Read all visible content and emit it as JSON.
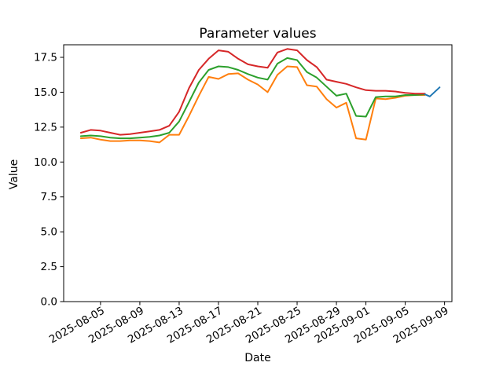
{
  "chart_data": {
    "type": "line",
    "title": "Parameter values",
    "xlabel": "Date",
    "ylabel": "Value",
    "grid": false,
    "legend": "none",
    "background": "#ffffff",
    "axis_color": "#000000",
    "ylim": [
      0,
      18.4
    ],
    "y_ticks": [
      {
        "value": 0.0,
        "label": "0.0"
      },
      {
        "value": 2.5,
        "label": "2.5"
      },
      {
        "value": 5.0,
        "label": "5.0"
      },
      {
        "value": 7.5,
        "label": "7.5"
      },
      {
        "value": 10.0,
        "label": "10.0"
      },
      {
        "value": 12.5,
        "label": "12.5"
      },
      {
        "value": 15.0,
        "label": "15.0"
      },
      {
        "value": 17.5,
        "label": "17.5"
      }
    ],
    "xlim": [
      "2025-08-01T06:00:00",
      "2025-09-09T18:00:00"
    ],
    "x_tick_rotation_deg": 30,
    "x_ticks": [
      {
        "date": "2025-08-05",
        "label": "2025-08-05"
      },
      {
        "date": "2025-08-09",
        "label": "2025-08-09"
      },
      {
        "date": "2025-08-13",
        "label": "2025-08-13"
      },
      {
        "date": "2025-08-17",
        "label": "2025-08-17"
      },
      {
        "date": "2025-08-21",
        "label": "2025-08-21"
      },
      {
        "date": "2025-08-25",
        "label": "2025-08-25"
      },
      {
        "date": "2025-08-29",
        "label": "2025-08-29"
      },
      {
        "date": "2025-09-01",
        "label": "2025-09-01"
      },
      {
        "date": "2025-09-05",
        "label": "2025-09-05"
      },
      {
        "date": "2025-09-09",
        "label": "2025-09-09"
      }
    ],
    "dates": [
      "2025-08-03",
      "2025-08-04",
      "2025-08-05",
      "2025-08-06",
      "2025-08-07",
      "2025-08-08",
      "2025-08-09",
      "2025-08-10",
      "2025-08-11",
      "2025-08-12",
      "2025-08-13",
      "2025-08-14",
      "2025-08-15",
      "2025-08-16",
      "2025-08-17",
      "2025-08-18",
      "2025-08-19",
      "2025-08-20",
      "2025-08-21",
      "2025-08-22",
      "2025-08-23",
      "2025-08-24",
      "2025-08-25",
      "2025-08-26",
      "2025-08-27",
      "2025-08-28",
      "2025-08-29",
      "2025-08-30",
      "2025-08-31",
      "2025-09-01",
      "2025-09-02",
      "2025-09-03",
      "2025-09-04",
      "2025-09-05",
      "2025-09-06",
      "2025-09-07"
    ],
    "series": [
      {
        "name": "orange",
        "color": "#ff7f0e",
        "values": [
          11.7,
          11.75,
          11.6,
          11.5,
          11.5,
          11.55,
          11.55,
          11.5,
          11.4,
          11.95,
          11.95,
          13.3,
          14.75,
          16.1,
          15.95,
          16.3,
          16.35,
          15.9,
          15.55,
          15.0,
          16.25,
          16.85,
          16.8,
          15.5,
          15.4,
          14.5,
          13.9,
          14.25,
          11.7,
          11.6,
          14.55,
          14.5,
          14.6,
          14.75,
          14.8,
          14.8
        ]
      },
      {
        "name": "green",
        "color": "#2ca02c",
        "values": [
          11.85,
          11.9,
          11.85,
          11.75,
          11.7,
          11.7,
          11.75,
          11.8,
          11.9,
          12.1,
          12.9,
          14.3,
          15.7,
          16.6,
          16.85,
          16.8,
          16.6,
          16.3,
          16.05,
          15.9,
          17.05,
          17.45,
          17.3,
          16.45,
          16.05,
          15.4,
          14.75,
          14.9,
          13.3,
          13.25,
          14.65,
          14.7,
          14.7,
          14.8,
          14.8,
          14.85
        ]
      },
      {
        "name": "red",
        "color": "#d62728",
        "values": [
          12.1,
          12.3,
          12.25,
          12.1,
          11.95,
          12.0,
          12.1,
          12.2,
          12.3,
          12.6,
          13.6,
          15.3,
          16.6,
          17.4,
          18.0,
          17.9,
          17.4,
          17.0,
          16.85,
          16.75,
          17.85,
          18.1,
          18.0,
          17.3,
          16.8,
          15.9,
          15.75,
          15.6,
          15.35,
          15.15,
          15.1,
          15.1,
          15.05,
          14.95,
          14.9,
          14.9
        ]
      },
      {
        "name": "blue",
        "color": "#1f77b4",
        "x": [
          "2025-09-07",
          "2025-09-07T12:00:00",
          "2025-09-08T12:00:00"
        ],
        "values": [
          14.85,
          14.7,
          15.35
        ]
      }
    ]
  }
}
